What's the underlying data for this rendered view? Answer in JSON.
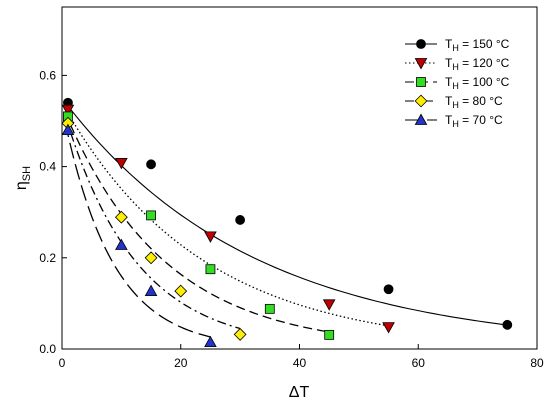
{
  "chart_data": {
    "type": "scatter",
    "title": "",
    "xlabel": "ΔT",
    "ylabel": {
      "main": "η",
      "sub": "SH"
    },
    "xlim": [
      0,
      80
    ],
    "ylim": [
      0,
      0.75
    ],
    "xticks": [
      0,
      20,
      40,
      60,
      80
    ],
    "yticks": [
      0.0,
      0.2,
      0.4,
      0.6
    ],
    "xtick_labels": [
      "0",
      "20",
      "40",
      "60",
      "80"
    ],
    "ytick_labels": [
      "0.0",
      "0.2",
      "0.4",
      "0.6"
    ],
    "grid": false,
    "legend_position": "top-right",
    "series": [
      {
        "name": "T_H = 150 °C",
        "legend": {
          "pre": "T",
          "sub": "H",
          "post": " = 150 °C"
        },
        "marker": "circle",
        "color": "#000000",
        "line_style": "solid",
        "x": [
          1,
          15,
          30,
          55,
          75
        ],
        "y": [
          0.54,
          0.405,
          0.283,
          0.131,
          0.053
        ],
        "fit": {
          "a": 0.55,
          "k": 0.0313,
          "x_range": [
            0.5,
            75
          ]
        }
      },
      {
        "name": "T_H = 120 °C",
        "legend": {
          "pre": "T",
          "sub": "H",
          "post": " = 120 °C"
        },
        "marker": "triangle-down",
        "color": "#c00000",
        "line_style": "dotted",
        "x": [
          1,
          10,
          25,
          45,
          55
        ],
        "y": [
          0.525,
          0.408,
          0.247,
          0.098,
          0.048
        ],
        "fit": {
          "a": 0.54,
          "k": 0.043,
          "x_range": [
            0.5,
            55
          ]
        }
      },
      {
        "name": "T_H = 100 °C",
        "legend": {
          "pre": "T",
          "sub": "H",
          "post": " = 100 °C"
        },
        "marker": "square",
        "color": "#33dd22",
        "line_style": "dashed",
        "x": [
          1,
          15,
          25,
          35,
          45
        ],
        "y": [
          0.51,
          0.293,
          0.175,
          0.088,
          0.031
        ],
        "fit": {
          "a": 0.535,
          "k": 0.0592,
          "x_range": [
            0.5,
            45
          ]
        }
      },
      {
        "name": "T_H = 80 °C",
        "legend": {
          "pre": "T",
          "sub": "H",
          "post": " = 80 °C"
        },
        "marker": "diamond",
        "color": "#ffee00",
        "line_style": "dashdot",
        "x": [
          1,
          10,
          15,
          20,
          30
        ],
        "y": [
          0.495,
          0.289,
          0.2,
          0.127,
          0.032
        ],
        "fit": {
          "a": 0.535,
          "k": 0.0826,
          "x_range": [
            0.5,
            30
          ]
        }
      },
      {
        "name": "T_H = 70 °C",
        "legend": {
          "pre": "T",
          "sub": "H",
          "post": " = 70 °C"
        },
        "marker": "triangle-up",
        "color": "#2233cc",
        "line_style": "longdash",
        "x": [
          1,
          10,
          15,
          25
        ],
        "y": [
          0.48,
          0.228,
          0.127,
          0.015
        ],
        "fit": {
          "a": 0.53,
          "k": 0.12,
          "x_range": [
            0.5,
            25
          ]
        }
      }
    ]
  }
}
